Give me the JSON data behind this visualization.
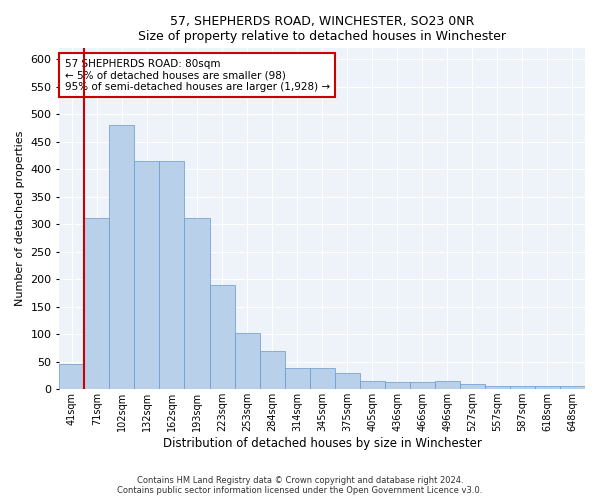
{
  "title": "57, SHEPHERDS ROAD, WINCHESTER, SO23 0NR",
  "subtitle": "Size of property relative to detached houses in Winchester",
  "xlabel": "Distribution of detached houses by size in Winchester",
  "ylabel": "Number of detached properties",
  "bar_color": "#b8d0ea",
  "bar_edge_color": "#6699cc",
  "background_color": "#eef2f9",
  "grid_color": "#ffffff",
  "categories": [
    "41sqm",
    "71sqm",
    "102sqm",
    "132sqm",
    "162sqm",
    "193sqm",
    "223sqm",
    "253sqm",
    "284sqm",
    "314sqm",
    "345sqm",
    "375sqm",
    "405sqm",
    "436sqm",
    "466sqm",
    "496sqm",
    "527sqm",
    "557sqm",
    "587sqm",
    "618sqm",
    "648sqm"
  ],
  "values": [
    46,
    312,
    480,
    415,
    415,
    312,
    190,
    103,
    70,
    38,
    38,
    30,
    14,
    13,
    13,
    15,
    10,
    6,
    5,
    5,
    5
  ],
  "ylim": [
    0,
    620
  ],
  "yticks": [
    0,
    50,
    100,
    150,
    200,
    250,
    300,
    350,
    400,
    450,
    500,
    550,
    600
  ],
  "property_line_x": 0.5,
  "property_line_color": "#cc0000",
  "annotation_text": "57 SHEPHERDS ROAD: 80sqm\n← 5% of detached houses are smaller (98)\n95% of semi-detached houses are larger (1,928) →",
  "annotation_box_color": "#cc0000",
  "footnote1": "Contains HM Land Registry data © Crown copyright and database right 2024.",
  "footnote2": "Contains public sector information licensed under the Open Government Licence v3.0."
}
